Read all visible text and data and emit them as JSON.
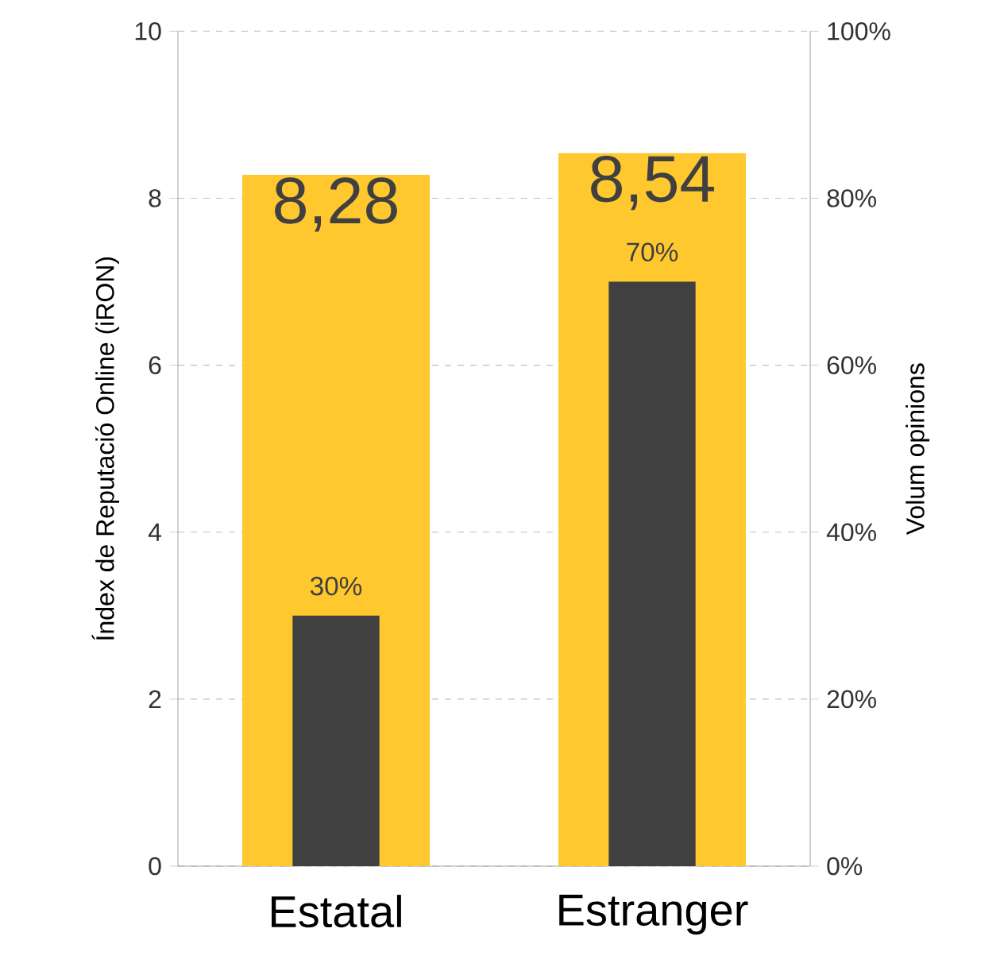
{
  "chart_data": {
    "type": "bar",
    "categories": [
      "Estatal",
      "Estranger"
    ],
    "ylabel": "Índex de Reputació Online (iRON)",
    "y2label": "Volum opinions",
    "series": [
      {
        "color": "#ffc82e",
        "values": [
          8.28,
          8.54
        ],
        "value_labels": [
          "8,28",
          "8,54"
        ],
        "axis": "y"
      },
      {
        "color": "#404040",
        "values": [
          30,
          70
        ],
        "value_labels": [
          "30%",
          "70%"
        ],
        "axis": "y2"
      }
    ],
    "ylim": [
      0,
      10
    ],
    "yticks": [
      0,
      2,
      4,
      6,
      8,
      10
    ],
    "y2lim": [
      0,
      100
    ],
    "y2ticks": [
      {
        "value": 0,
        "label": "0%"
      },
      {
        "value": 20,
        "label": "20%"
      },
      {
        "value": 40,
        "label": "40%"
      },
      {
        "value": 60,
        "label": "60%"
      },
      {
        "value": 80,
        "label": "80%"
      },
      {
        "value": 100,
        "label": "100%"
      }
    ],
    "grid": "y"
  }
}
